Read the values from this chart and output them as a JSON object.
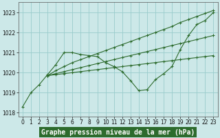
{
  "title": "Graphe pression niveau de la mer (hPa)",
  "plot_bg": "#cce8e8",
  "fig_bg": "#cce8e8",
  "label_bg": "#2d6b2d",
  "grid_color": "#99cccc",
  "line_color": "#2d6b2d",
  "xlim": [
    -0.5,
    23.5
  ],
  "ylim": [
    1017.8,
    1023.5
  ],
  "yticks": [
    1018,
    1019,
    1020,
    1021,
    1022,
    1023
  ],
  "xticks": [
    0,
    1,
    2,
    3,
    4,
    5,
    6,
    7,
    8,
    9,
    10,
    11,
    12,
    13,
    14,
    15,
    16,
    17,
    18,
    19,
    20,
    21,
    22,
    23
  ],
  "series1": [
    1018.3,
    1019.0,
    1019.4,
    1019.9,
    1020.4,
    1021.0,
    1021.0,
    1020.9,
    1020.85,
    1020.8,
    1020.5,
    1020.3,
    1020.05,
    1019.6,
    1019.1,
    1019.15,
    1019.65,
    1019.95,
    1020.3,
    1021.15,
    1021.85,
    1022.4,
    1022.6,
    1023.0
  ],
  "series2": [
    1019.85,
    1020.1,
    1020.3,
    1020.5,
    1020.65,
    1020.8,
    1020.95,
    1021.1,
    1021.25,
    1021.4,
    1021.55,
    1021.7,
    1021.85,
    1022.0,
    1022.15,
    1022.3,
    1022.5,
    1022.65,
    1022.8,
    1022.95,
    1023.1
  ],
  "series3": [
    1019.85,
    1019.95,
    1020.05,
    1020.15,
    1020.25,
    1020.35,
    1020.45,
    1020.55,
    1020.65,
    1020.75,
    1020.85,
    1020.95,
    1021.05,
    1021.15,
    1021.25,
    1021.35,
    1021.45,
    1021.55,
    1021.65,
    1021.75,
    1021.85
  ],
  "series4": [
    1019.85,
    1019.9,
    1019.95,
    1020.0,
    1020.05,
    1020.1,
    1020.15,
    1020.2,
    1020.25,
    1020.3,
    1020.35,
    1020.4,
    1020.45,
    1020.5,
    1020.55,
    1020.6,
    1020.65,
    1020.7,
    1020.75,
    1020.8,
    1020.85
  ],
  "s2_start": 3,
  "tick_fontsize": 5.5,
  "xlabel_fontsize": 7
}
